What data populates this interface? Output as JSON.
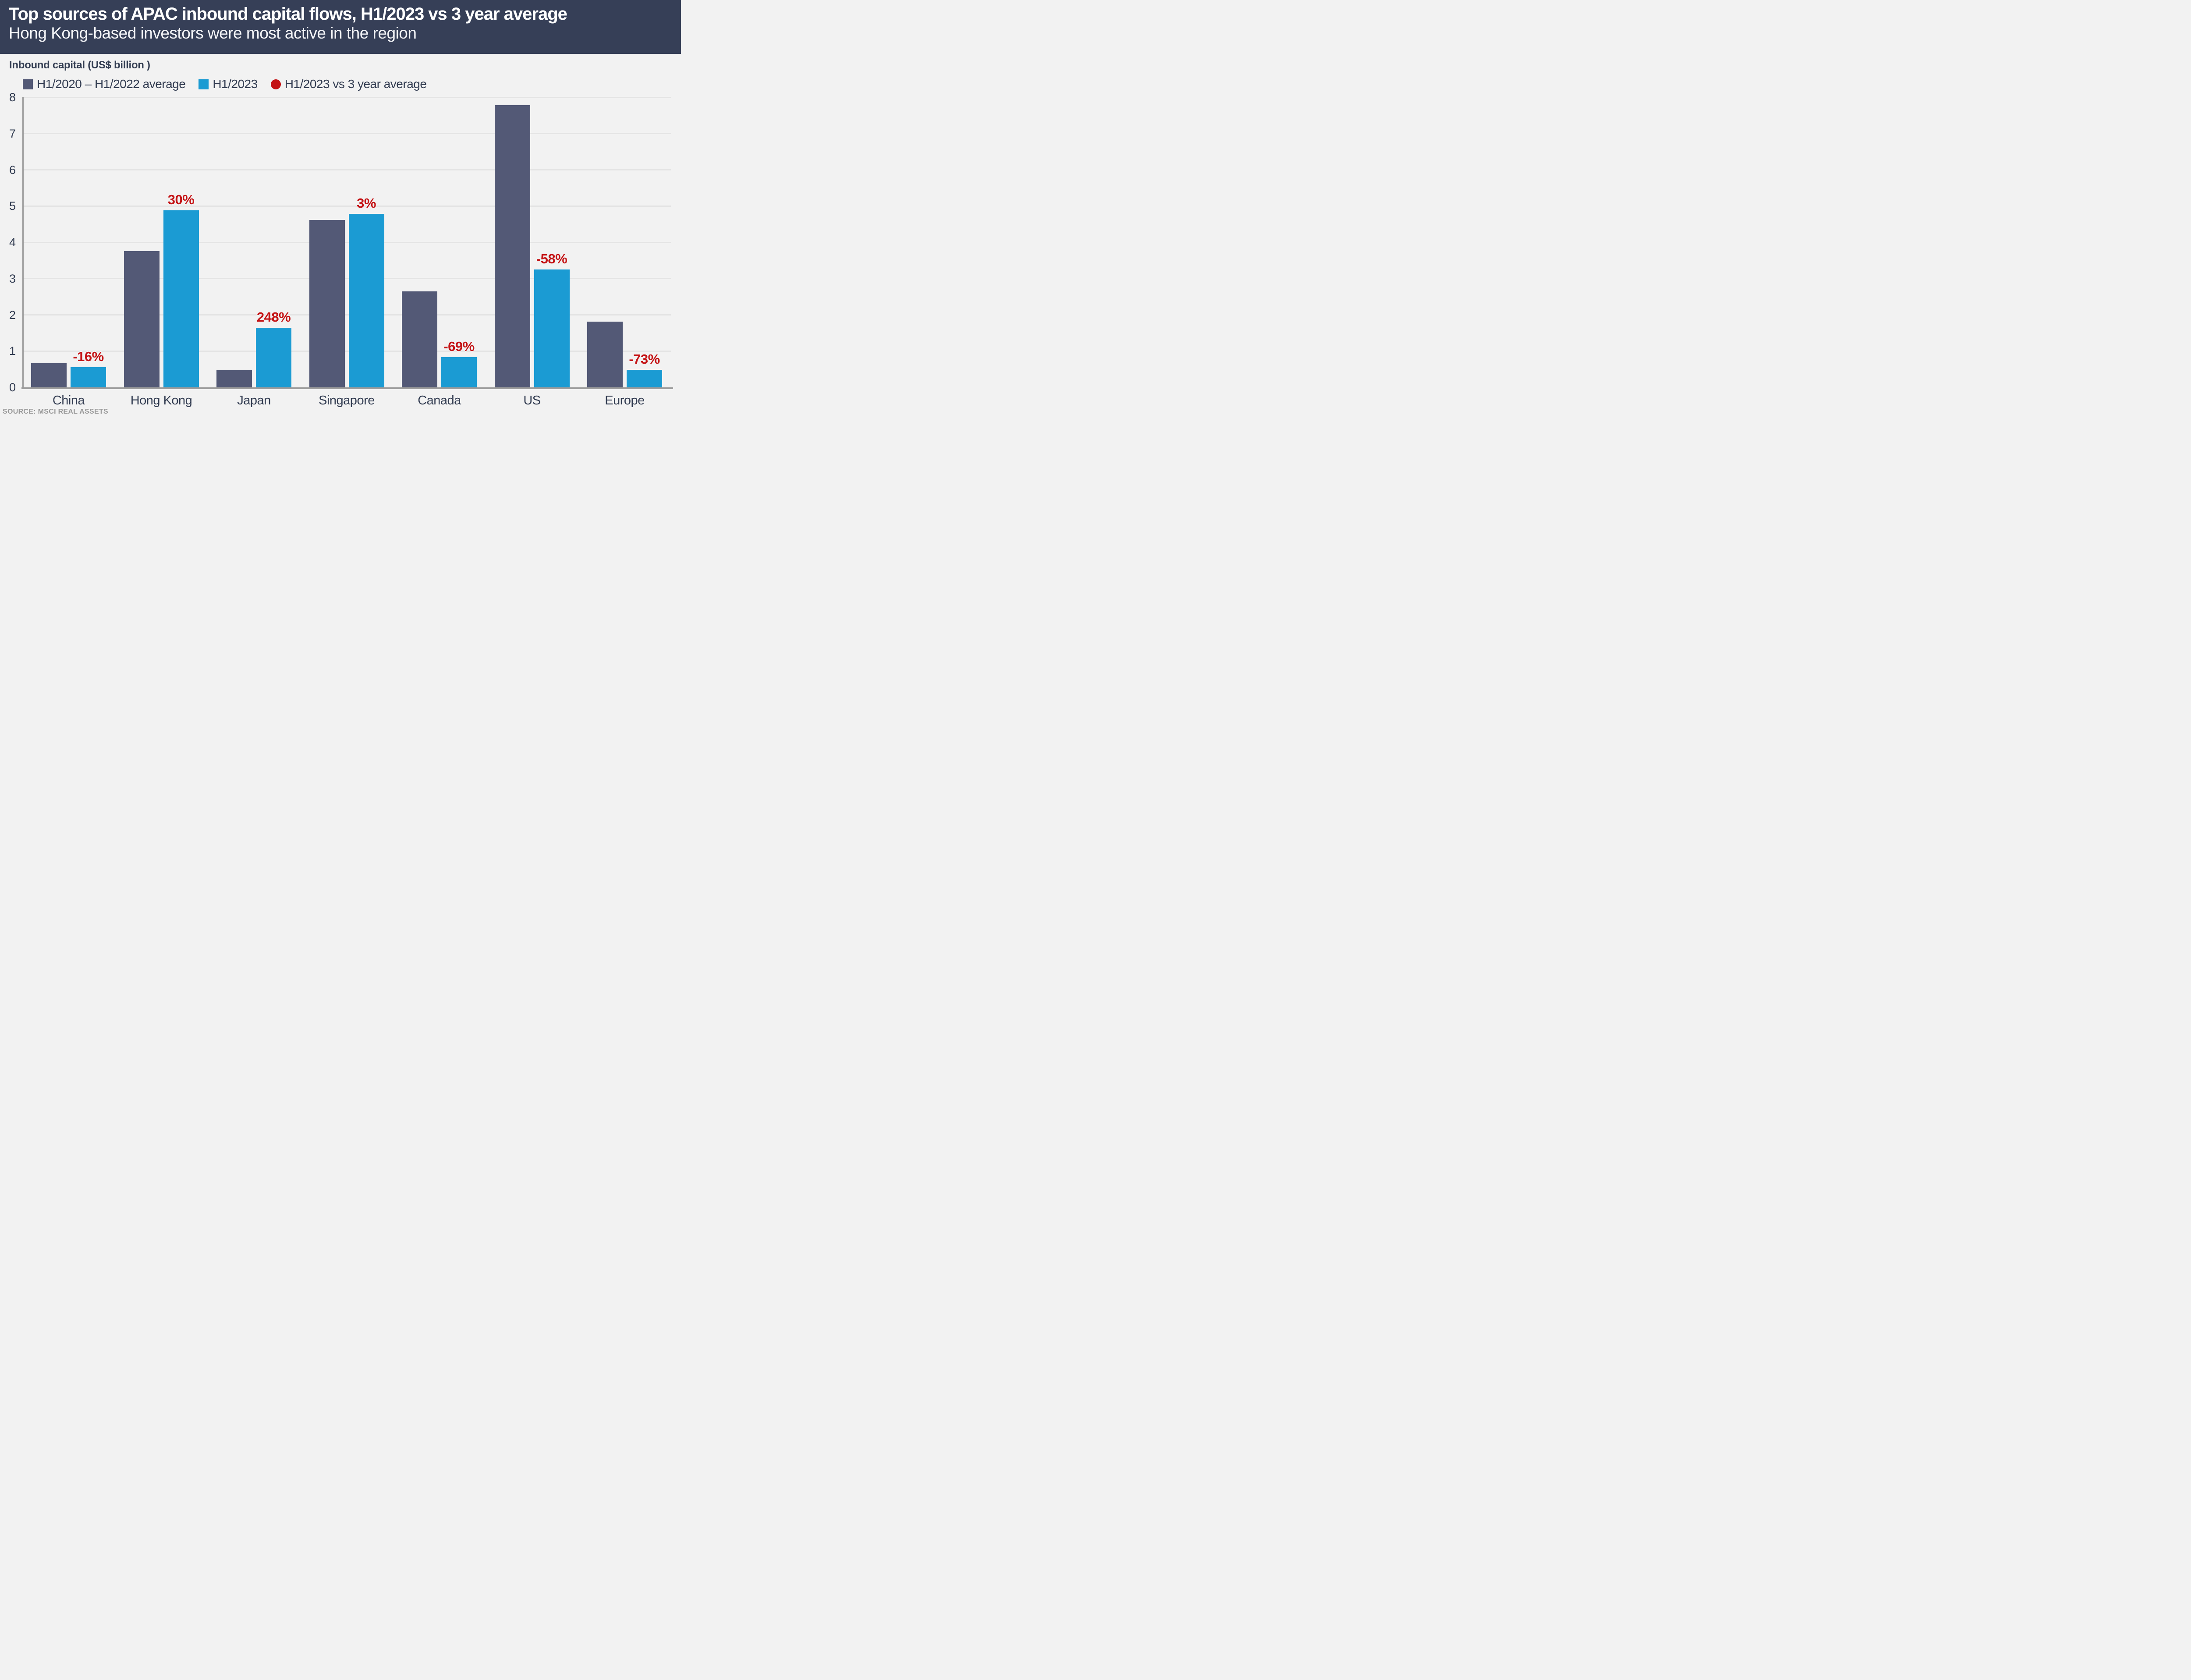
{
  "header": {
    "title": "Top sources of APAC inbound capital flows, H1/2023 vs 3 year average",
    "subtitle": "Hong Kong-based investors were most active in the region"
  },
  "axis_title": "Inbound capital (US$ billion )",
  "legend": [
    {
      "label": "H1/2020 – H1/2022 average",
      "color": "#535976",
      "shape": "square"
    },
    {
      "label": "H1/2023",
      "color": "#1b9bd3",
      "shape": "square"
    },
    {
      "label": "H1/2023 vs 3 year average",
      "color": "#c41315",
      "shape": "circle"
    }
  ],
  "source": "SOURCE: MSCI REAL ASSETS",
  "colors": {
    "header_bg": "#363f57",
    "bar_average": "#535976",
    "bar_h1_2023": "#1b9bd3",
    "pct_label": "#c41315",
    "text_navy": "#333d52",
    "background": "#f2f2f2",
    "gridline": "#e4e4e4",
    "axis_line": "#9b9b9b",
    "source_text": "#999999"
  },
  "chart_data": {
    "type": "bar",
    "title": "Top sources of APAC inbound capital flows, H1/2023 vs 3 year average",
    "subtitle": "Hong Kong-based investors were most active in the region",
    "ylabel": "Inbound capital (US$ billion )",
    "xlabel": "",
    "ylim": [
      0,
      8
    ],
    "yticks": [
      0,
      1,
      2,
      3,
      4,
      5,
      6,
      7,
      8
    ],
    "grid": true,
    "legend_position": "top",
    "categories": [
      "China",
      "Hong Kong",
      "Japan",
      "Singapore",
      "Canada",
      "US",
      "Europe"
    ],
    "series": [
      {
        "name": "H1/2020 – H1/2022 average",
        "color": "#535976",
        "values": [
          0.67,
          3.76,
          0.47,
          4.62,
          2.65,
          7.78,
          1.81
        ]
      },
      {
        "name": "H1/2023",
        "color": "#1b9bd3",
        "values": [
          0.56,
          4.88,
          1.64,
          4.78,
          0.83,
          3.25,
          0.48
        ]
      }
    ],
    "change_labels": [
      "-16%",
      "30%",
      "248%",
      "3%",
      "-69%",
      "-58%",
      "-73%"
    ],
    "source": "SOURCE: MSCI REAL ASSETS"
  }
}
